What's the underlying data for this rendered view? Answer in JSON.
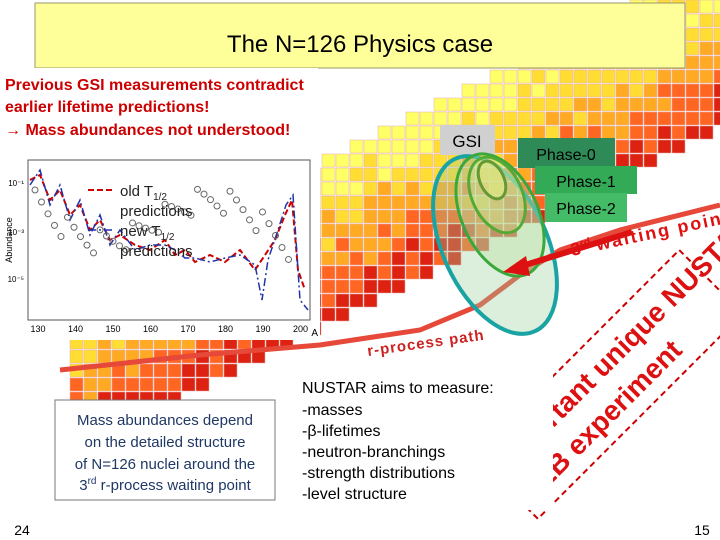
{
  "title": "The N=126 Physics case",
  "intro": [
    "Previous GSI measurements contradict",
    "earlier lifetime predictions!",
    "→ Mass abundances not understood!"
  ],
  "inset": {
    "legend": [
      {
        "pre": "old T",
        "sub": "1/2",
        "post": "predictions"
      },
      {
        "pre": "new T",
        "sub": "1/2",
        "post": "predictions"
      }
    ],
    "xticks": [
      "130",
      "140",
      "150",
      "160",
      "170",
      "180",
      "190",
      "200"
    ],
    "xlabel": "A",
    "ylabel": "Abundance",
    "yticks": [
      "10⁻¹",
      "10⁻³",
      "10⁻⁵"
    ]
  },
  "labels": {
    "gsi": "GSI",
    "phase0": "Phase-0",
    "phase1": "Phase-1",
    "phase2": "Phase-2",
    "waiting_num": "3",
    "waiting_sup": "rd",
    "waiting_text": "waiting point",
    "rpath": "r-process path"
  },
  "nustar": {
    "heading": "NUSTAR  aims to measure:",
    "items": [
      "-masses",
      "-β-lifetimes",
      "-neutron-branchings",
      "-strength distributions",
      "-level structure"
    ]
  },
  "stamp": [
    "Important unique NUSTAR-",
    "LEB experiment"
  ],
  "mass_box": {
    "lines": [
      "Mass abundances depend",
      "on the detailed structure",
      "of N=126 nuclei around the"
    ],
    "last_num": "3",
    "last_sup": "rd",
    "last_text": " r-process waiting point"
  },
  "page_left": "24",
  "page_right": "15"
}
